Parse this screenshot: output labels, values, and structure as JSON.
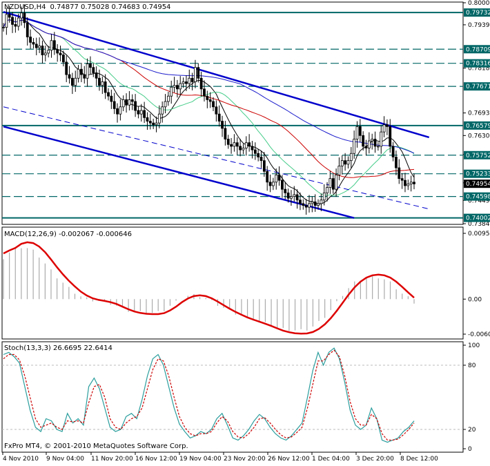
{
  "header": {
    "symbol": "NZDUSD,H4",
    "ohlc": "0.74877 0.75028 0.74683 0.74954"
  },
  "colors": {
    "candle": "#000000",
    "channel": "#0000cc",
    "levels": "#006666",
    "ma_fast": "#000000",
    "ma_mid": "#44cc88",
    "ma_slow": "#cc0000",
    "ma_long": "#1a1acc",
    "macd_hist": "#aaaaaa",
    "macd_signal": "#dd0000",
    "stoch_main": "#2a9d9d",
    "stoch_signal": "#cc0000"
  },
  "price_panel": {
    "y_ticks": [
      {
        "label": "0.80005",
        "value": 0.80005
      },
      {
        "label": "0.79390",
        "value": 0.7939
      },
      {
        "label": "0.78180",
        "value": 0.7818
      },
      {
        "label": "0.76930",
        "value": 0.7693
      },
      {
        "label": "0.76300",
        "value": 0.763
      },
      {
        "label": "0.75770",
        "value": 0.7577
      },
      {
        "label": "0.74980",
        "value": 0.7498
      },
      {
        "label": "0.74490",
        "value": 0.7449
      },
      {
        "label": "0.73840",
        "value": 0.7384
      }
    ],
    "price_labels": [
      {
        "label": "0.79732",
        "value": 0.79732,
        "style": "solid"
      },
      {
        "label": "0.78709",
        "value": 0.78709,
        "style": "dashed"
      },
      {
        "label": "0.78316",
        "value": 0.78316,
        "style": "dashed"
      },
      {
        "label": "0.77671",
        "value": 0.77671,
        "style": "dashed"
      },
      {
        "label": "0.76579",
        "value": 0.76579,
        "style": "solid"
      },
      {
        "label": "0.75752",
        "value": 0.75752,
        "style": "dashed"
      },
      {
        "label": "0.75233",
        "value": 0.75233,
        "style": "dashed"
      },
      {
        "label": "0.74598",
        "value": 0.74598,
        "style": "dashed"
      },
      {
        "label": "0.74002",
        "value": 0.74002,
        "style": "solid"
      }
    ],
    "current_price": "0.74954"
  },
  "macd_panel": {
    "label": "MACD(12,26,9) -0.002067 -0.000646",
    "y_ticks": [
      {
        "label": "0.009574",
        "value": 0.009574
      },
      {
        "label": "0.00",
        "value": 0
      },
      {
        "label": "-0.006097",
        "value": -0.006097
      }
    ]
  },
  "stoch_panel": {
    "label": "Stoch(13,3,3) 26.6695 22.6414",
    "y_ticks": [
      {
        "label": "100",
        "value": 100
      },
      {
        "label": "80",
        "value": 80
      },
      {
        "label": "20",
        "value": 20
      },
      {
        "label": "0",
        "value": 0
      }
    ]
  },
  "copyright": "FxPro MT4, © 2001-2010 MetaQuotes Software Corp.",
  "x_axis": {
    "labels": [
      "4 Nov 2010",
      "9 Nov 04:00",
      "11 Nov 20:00",
      "16 Nov 12:00",
      "19 Nov 04:00",
      "23 Nov 20:00",
      "26 Nov 12:00",
      "1 Dec 04:00",
      "3 Dec 20:00",
      "8 Dec 12:00"
    ]
  },
  "chart_data": {
    "type": "line",
    "price_series": [
      0.7932,
      0.7968,
      0.796,
      0.794,
      0.7935,
      0.7958,
      0.7972,
      0.7945,
      0.7905,
      0.789,
      0.7885,
      0.7875,
      0.788,
      0.7855,
      0.786,
      0.7868,
      0.7895,
      0.787,
      0.786,
      0.7855,
      0.7835,
      0.78,
      0.779,
      0.777,
      0.779,
      0.7815,
      0.78,
      0.779,
      0.783,
      0.782,
      0.7805,
      0.779,
      0.777,
      0.778,
      0.775,
      0.774,
      0.7725,
      0.7705,
      0.769,
      0.771,
      0.773,
      0.7715,
      0.773,
      0.7725,
      0.77,
      0.769,
      0.77,
      0.768,
      0.767,
      0.7665,
      0.766,
      0.7665,
      0.769,
      0.771,
      0.7725,
      0.774,
      0.7765,
      0.777,
      0.776,
      0.7775,
      0.778,
      0.7775,
      0.779,
      0.778,
      0.782,
      0.779,
      0.776,
      0.774,
      0.773,
      0.7725,
      0.771,
      0.769,
      0.767,
      0.765,
      0.762,
      0.7605,
      0.76,
      0.761,
      0.76,
      0.759,
      0.7595,
      0.761,
      0.76,
      0.759,
      0.758,
      0.757,
      0.756,
      0.753,
      0.75,
      0.749,
      0.75,
      0.752,
      0.7505,
      0.748,
      0.747,
      0.7455,
      0.746,
      0.7465,
      0.745,
      0.744,
      0.7435,
      0.743,
      0.744,
      0.7445,
      0.7435,
      0.744,
      0.745,
      0.747,
      0.7485,
      0.751,
      0.748,
      0.752,
      0.7545,
      0.756,
      0.755,
      0.756,
      0.758,
      0.762,
      0.7655,
      0.763,
      0.76,
      0.7595,
      0.7615,
      0.762,
      0.76,
      0.76,
      0.764,
      0.766,
      0.7655,
      0.76,
      0.757,
      0.754,
      0.751,
      0.7505,
      0.749,
      0.7495,
      0.75,
      0.7495
    ],
    "macd_series": [
      0.0075,
      0.0085,
      0.0092,
      0.0095,
      0.0093,
      0.0088,
      0.0078,
      0.0065,
      0.0052,
      0.004,
      0.003,
      0.002,
      0.0012,
      0.0005,
      0.0001,
      -0.0002,
      -0.0003,
      -0.0004,
      -0.0008,
      -0.0012,
      -0.0017,
      -0.0021,
      -0.0023,
      -0.0024,
      -0.0025,
      -0.0025,
      -0.0024,
      -0.002,
      -0.0012,
      -0.0005,
      0.0002,
      0.0006,
      0.0007,
      0.0006,
      0.0002,
      -0.0004,
      -0.001,
      -0.0016,
      -0.0021,
      -0.0026,
      -0.003,
      -0.0034,
      -0.0037,
      -0.004,
      -0.0044,
      -0.0048,
      -0.0052,
      -0.0055,
      -0.0056,
      -0.0057,
      -0.0057,
      -0.0055,
      -0.005,
      -0.0042,
      -0.0032,
      -0.002,
      -0.0006,
      0.0008,
      0.002,
      0.003,
      0.0036,
      0.004,
      0.0041,
      0.004,
      0.0036,
      0.003,
      0.002,
      0.001,
      0.0003,
      -0.0006
    ],
    "stoch_main": [
      90,
      92,
      88,
      82,
      60,
      38,
      22,
      18,
      30,
      28,
      20,
      18,
      35,
      26,
      30,
      24,
      60,
      68,
      58,
      40,
      22,
      18,
      20,
      32,
      35,
      30,
      48,
      70,
      86,
      90,
      80,
      60,
      40,
      25,
      18,
      12,
      14,
      18,
      16,
      20,
      30,
      35,
      24,
      12,
      10,
      14,
      20,
      28,
      34,
      30,
      22,
      16,
      12,
      10,
      14,
      20,
      26,
      50,
      75,
      92,
      80,
      92,
      96,
      86,
      64,
      38,
      24,
      20,
      24,
      40,
      30,
      10,
      8,
      10,
      12,
      18,
      22,
      28
    ],
    "stoch_signal": [
      86,
      90,
      90,
      85,
      70,
      50,
      30,
      22,
      24,
      26,
      22,
      20,
      28,
      27,
      28,
      26,
      45,
      60,
      62,
      50,
      30,
      22,
      20,
      26,
      30,
      32,
      40,
      58,
      76,
      86,
      84,
      70,
      50,
      32,
      22,
      16,
      14,
      16,
      16,
      18,
      26,
      32,
      28,
      18,
      13,
      12,
      16,
      22,
      30,
      31,
      26,
      20,
      15,
      12,
      13,
      17,
      22,
      40,
      62,
      84,
      84,
      90,
      94,
      88,
      70,
      46,
      30,
      24,
      24,
      34,
      30,
      16,
      10,
      10,
      11,
      15,
      20,
      26
    ]
  }
}
